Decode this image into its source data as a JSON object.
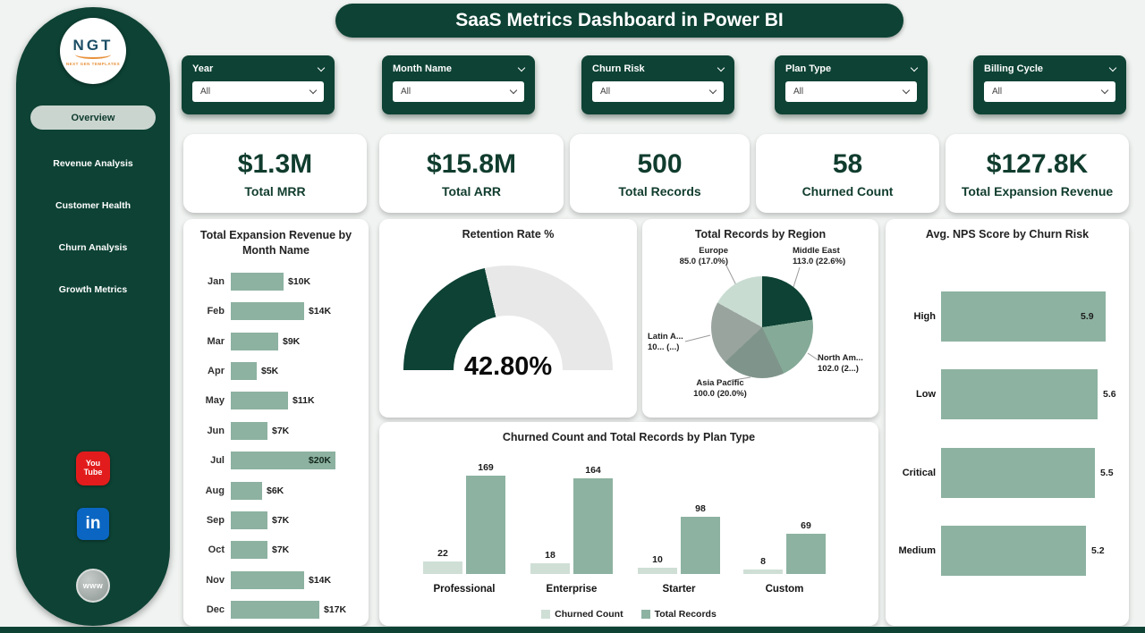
{
  "header": {
    "title": "SaaS Metrics Dashboard in Power BI"
  },
  "sidebar": {
    "logo": {
      "text": "NGT",
      "subtext": "NEXT GEN TEMPLATES"
    },
    "items": [
      {
        "label": "Overview",
        "active": true
      },
      {
        "label": "Revenue Analysis",
        "active": false
      },
      {
        "label": "Customer Health",
        "active": false
      },
      {
        "label": "Churn Analysis",
        "active": false
      },
      {
        "label": "Growth Metrics",
        "active": false
      }
    ],
    "social": [
      {
        "name": "youtube",
        "line1": "You",
        "line2": "Tube"
      },
      {
        "name": "linkedin",
        "text": "in"
      },
      {
        "name": "website",
        "text": "www"
      }
    ]
  },
  "filters": [
    {
      "label": "Year",
      "value": "All"
    },
    {
      "label": "Month Name",
      "value": "All"
    },
    {
      "label": "Churn Risk",
      "value": "All"
    },
    {
      "label": "Plan Type",
      "value": "All"
    },
    {
      "label": "Billing Cycle",
      "value": "All"
    }
  ],
  "kpis": [
    {
      "value": "$1.3M",
      "label": "Total MRR"
    },
    {
      "value": "$15.8M",
      "label": "Total ARR"
    },
    {
      "value": "500",
      "label": "Total Records"
    },
    {
      "value": "58",
      "label": "Churned Count"
    },
    {
      "value": "$127.8K",
      "label": "Total Expansion Revenue"
    }
  ],
  "colors": {
    "dark_green": "#0d4234",
    "sage": "#8db2a1",
    "mint": "#cfdfd6",
    "gauge_track": "#e8e8e8",
    "page_bg": "#f0f3f1",
    "card_bg": "#ffffff"
  },
  "chart_data": [
    {
      "id": "expansion_by_month",
      "type": "bar",
      "orientation": "horizontal",
      "title": "Total Expansion Revenue by Month Name",
      "categories": [
        "Jan",
        "Feb",
        "Mar",
        "Apr",
        "May",
        "Jun",
        "Jul",
        "Aug",
        "Sep",
        "Oct",
        "Nov",
        "Dec"
      ],
      "values": [
        10,
        14,
        9,
        5,
        11,
        7,
        20,
        6,
        7,
        7,
        14,
        17
      ],
      "value_labels": [
        "$10K",
        "$14K",
        "$9K",
        "$5K",
        "$11K",
        "$7K",
        "$20K",
        "$6K",
        "$7K",
        "$7K",
        "$14K",
        "$17K"
      ],
      "xlim": [
        0,
        20
      ],
      "grid": false
    },
    {
      "id": "retention_gauge",
      "type": "gauge",
      "title": "Retention Rate %",
      "value": 42.8,
      "value_label": "42.80%",
      "range": [
        0,
        100
      ]
    },
    {
      "id": "records_by_region",
      "type": "pie",
      "title": "Total Records by Region",
      "slices": [
        {
          "label": "Middle East",
          "label_lines": [
            "Middle East",
            "113.0 (22.6%)"
          ],
          "value": 113.0,
          "pct": 22.6,
          "color": "#0d4234"
        },
        {
          "label": "North America",
          "label_lines": [
            "North Am...",
            "102.0 (2...)"
          ],
          "value": 102.0,
          "pct": 20.4,
          "color": "#85aa98"
        },
        {
          "label": "Asia Pacific",
          "label_lines": [
            "Asia Pacific",
            "100.0 (20.0%)"
          ],
          "value": 100.0,
          "pct": 20.0,
          "color": "#7f958b"
        },
        {
          "label": "Latin America",
          "label_lines": [
            "Latin A...",
            "10... (...)"
          ],
          "value": 100.0,
          "pct": 20.0,
          "color": "#9aa49f"
        },
        {
          "label": "Europe",
          "label_lines": [
            "Europe",
            "85.0 (17.0%)"
          ],
          "value": 85.0,
          "pct": 17.0,
          "color": "#c9dcd2"
        }
      ]
    },
    {
      "id": "plan_type_columns",
      "type": "bar",
      "title": "Churned Count and Total Records by Plan Type",
      "categories": [
        "Professional",
        "Enterprise",
        "Starter",
        "Custom"
      ],
      "series": [
        {
          "name": "Churned Count",
          "color": "#cfdfd6",
          "values": [
            22,
            18,
            10,
            8
          ]
        },
        {
          "name": "Total Records",
          "color": "#8db2a1",
          "values": [
            169,
            164,
            98,
            69
          ]
        }
      ],
      "ylim": [
        0,
        180
      ],
      "legend_position": "bottom"
    },
    {
      "id": "nps_by_churn_risk",
      "type": "bar",
      "orientation": "horizontal",
      "title": "Avg. NPS Score by Churn Risk",
      "categories": [
        "High",
        "Low",
        "Critical",
        "Medium"
      ],
      "values": [
        5.9,
        5.6,
        5.5,
        5.2
      ],
      "value_labels": [
        "5.9",
        "5.6",
        "5.5",
        "5.2"
      ],
      "xlim": [
        0,
        5.9
      ]
    }
  ]
}
